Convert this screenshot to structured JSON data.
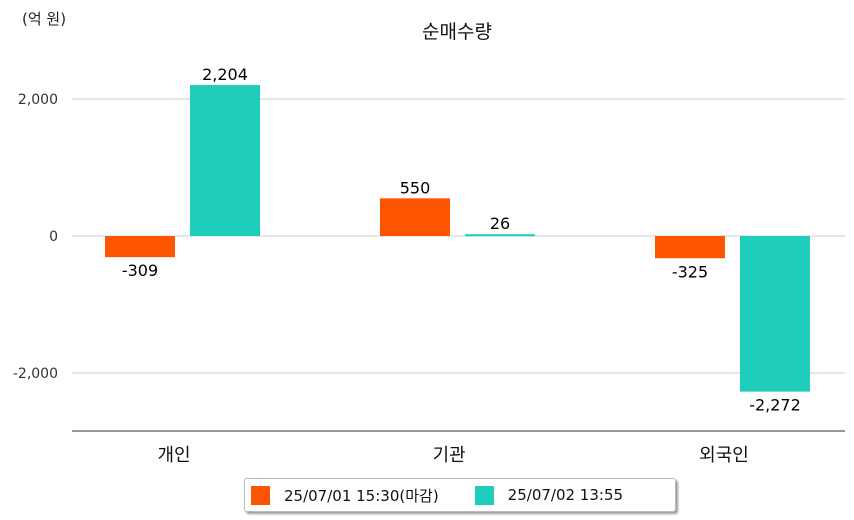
{
  "chart_data": {
    "type": "bar",
    "title": "순매수량",
    "unit_label": "(억 원)",
    "categories": [
      "개인",
      "기관",
      "외국인"
    ],
    "series": [
      {
        "name": "25/07/01 15:30(마감)",
        "color": "#ff5500",
        "values": [
          -309,
          550,
          -325
        ],
        "labels": [
          "-309",
          "550",
          "-325"
        ]
      },
      {
        "name": "25/07/02 13:55",
        "color": "#1ecdbb",
        "values": [
          2204,
          26,
          -2272
        ],
        "labels": [
          "2,204",
          "26",
          "-2,272"
        ]
      }
    ],
    "yticks": [
      2000,
      0,
      -2000
    ],
    "ytick_labels": [
      "2,000",
      "0",
      "-2,000"
    ],
    "ylim": [
      -2850,
      2850
    ],
    "grid": true,
    "legend": "bottom"
  }
}
